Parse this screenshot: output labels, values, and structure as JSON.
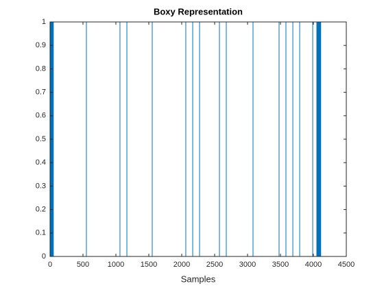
{
  "chart_data": {
    "type": "line",
    "title": "Boxy Representation",
    "x_label": "Samples",
    "xlim": [
      0,
      4500
    ],
    "xticks": [
      0,
      500,
      1000,
      1500,
      2000,
      2500,
      3000,
      3500,
      4000,
      4500
    ],
    "ylim": [
      0,
      1
    ],
    "yticks": [
      0,
      0.1,
      0.2,
      0.3,
      0.4,
      0.5,
      0.6,
      0.7,
      0.8,
      0.9,
      1
    ],
    "series": [
      {
        "color": "#0072bd",
        "x": [
          0,
          0,
          10,
          10,
          20,
          20,
          30,
          30,
          40,
          40,
          50,
          50,
          552,
          552,
          1062,
          1062,
          1167,
          1167,
          1552,
          1552,
          2062,
          2062,
          2167,
          2167,
          2271,
          2271,
          2573,
          2573,
          2677,
          2677,
          3083,
          3083,
          3479,
          3479,
          3583,
          3583,
          3688,
          3688,
          3792,
          3792,
          3990,
          3990,
          4052,
          4052,
          4062,
          4062,
          4072,
          4072,
          4082,
          4082,
          4092,
          4092,
          4102,
          4102,
          4112,
          4112
        ],
        "values": [
          0,
          1,
          1,
          0,
          0,
          1,
          1,
          0,
          0,
          1,
          1,
          0,
          0,
          1,
          1,
          0,
          0,
          1,
          1,
          0,
          0,
          1,
          1,
          0,
          0,
          1,
          1,
          0,
          0,
          1,
          1,
          0,
          0,
          1,
          1,
          0,
          0,
          1,
          1,
          0,
          0,
          1,
          1,
          0,
          0,
          1,
          1,
          0,
          0,
          1,
          1,
          0,
          0,
          1,
          1,
          0
        ]
      }
    ]
  }
}
